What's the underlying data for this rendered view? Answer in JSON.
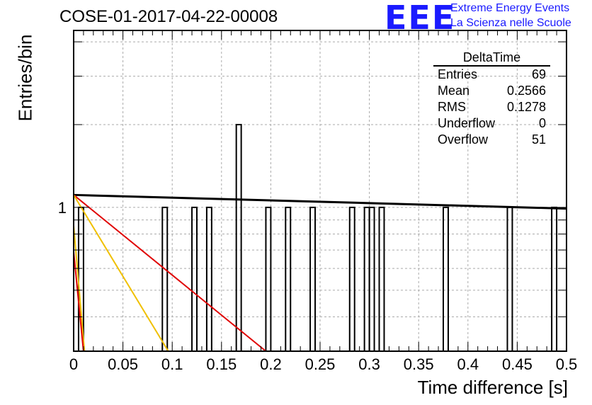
{
  "title": "COSE-01-2017-04-22-00008",
  "logo": {
    "mark": "EEE",
    "line1": "Extreme Energy Events",
    "line2": "La Scienza nelle Scuole"
  },
  "stats_box": {
    "title": "DeltaTime",
    "rows": [
      {
        "label": "Entries",
        "value": "69"
      },
      {
        "label": "Mean",
        "value": "0.2566"
      },
      {
        "label": "RMS",
        "value": "0.1278"
      },
      {
        "label": "Underflow",
        "value": "0"
      },
      {
        "label": "Overflow",
        "value": "51"
      }
    ]
  },
  "chart_data": {
    "type": "bar",
    "title": "COSE-01-2017-04-22-00008",
    "xlabel": "Time difference [s]",
    "ylabel": "Entries/bin",
    "xlim": [
      0,
      0.5
    ],
    "ylim": [
      0.3,
      4.4
    ],
    "log_y": true,
    "grid": true,
    "x_ticks": [
      "0",
      "0.05",
      "0.1",
      "0.15",
      "0.2",
      "0.25",
      "0.3",
      "0.35",
      "0.4",
      "0.45",
      "0.5"
    ],
    "y_tick_labels": [
      "1"
    ],
    "bin_width": 0.005,
    "bins": [
      {
        "x": 0.005,
        "value": 1
      },
      {
        "x": 0.09,
        "value": 1
      },
      {
        "x": 0.12,
        "value": 1
      },
      {
        "x": 0.135,
        "value": 1
      },
      {
        "x": 0.165,
        "value": 2
      },
      {
        "x": 0.195,
        "value": 1
      },
      {
        "x": 0.215,
        "value": 1
      },
      {
        "x": 0.24,
        "value": 1
      },
      {
        "x": 0.28,
        "value": 1
      },
      {
        "x": 0.295,
        "value": 1
      },
      {
        "x": 0.3,
        "value": 1
      },
      {
        "x": 0.31,
        "value": 1
      },
      {
        "x": 0.375,
        "value": 1
      },
      {
        "x": 0.44,
        "value": 1
      },
      {
        "x": 0.485,
        "value": 1
      }
    ],
    "fit_curves": [
      {
        "color": "#000000",
        "x": [
          0.0,
          0.5
        ],
        "y": [
          1.11,
          0.99
        ]
      },
      {
        "color": "#e00000",
        "x": [
          0.0,
          0.195
        ],
        "y": [
          1.11,
          0.3
        ]
      },
      {
        "color": "#f0c000",
        "x": [
          0.0,
          0.096
        ],
        "y": [
          1.11,
          0.3
        ]
      },
      {
        "color": "#f0c000",
        "x": [
          0.0,
          0.011
        ],
        "y": [
          0.86,
          0.3
        ]
      },
      {
        "color": "#e00000",
        "x": [
          0.0,
          0.01
        ],
        "y": [
          0.69,
          0.3
        ]
      }
    ]
  }
}
